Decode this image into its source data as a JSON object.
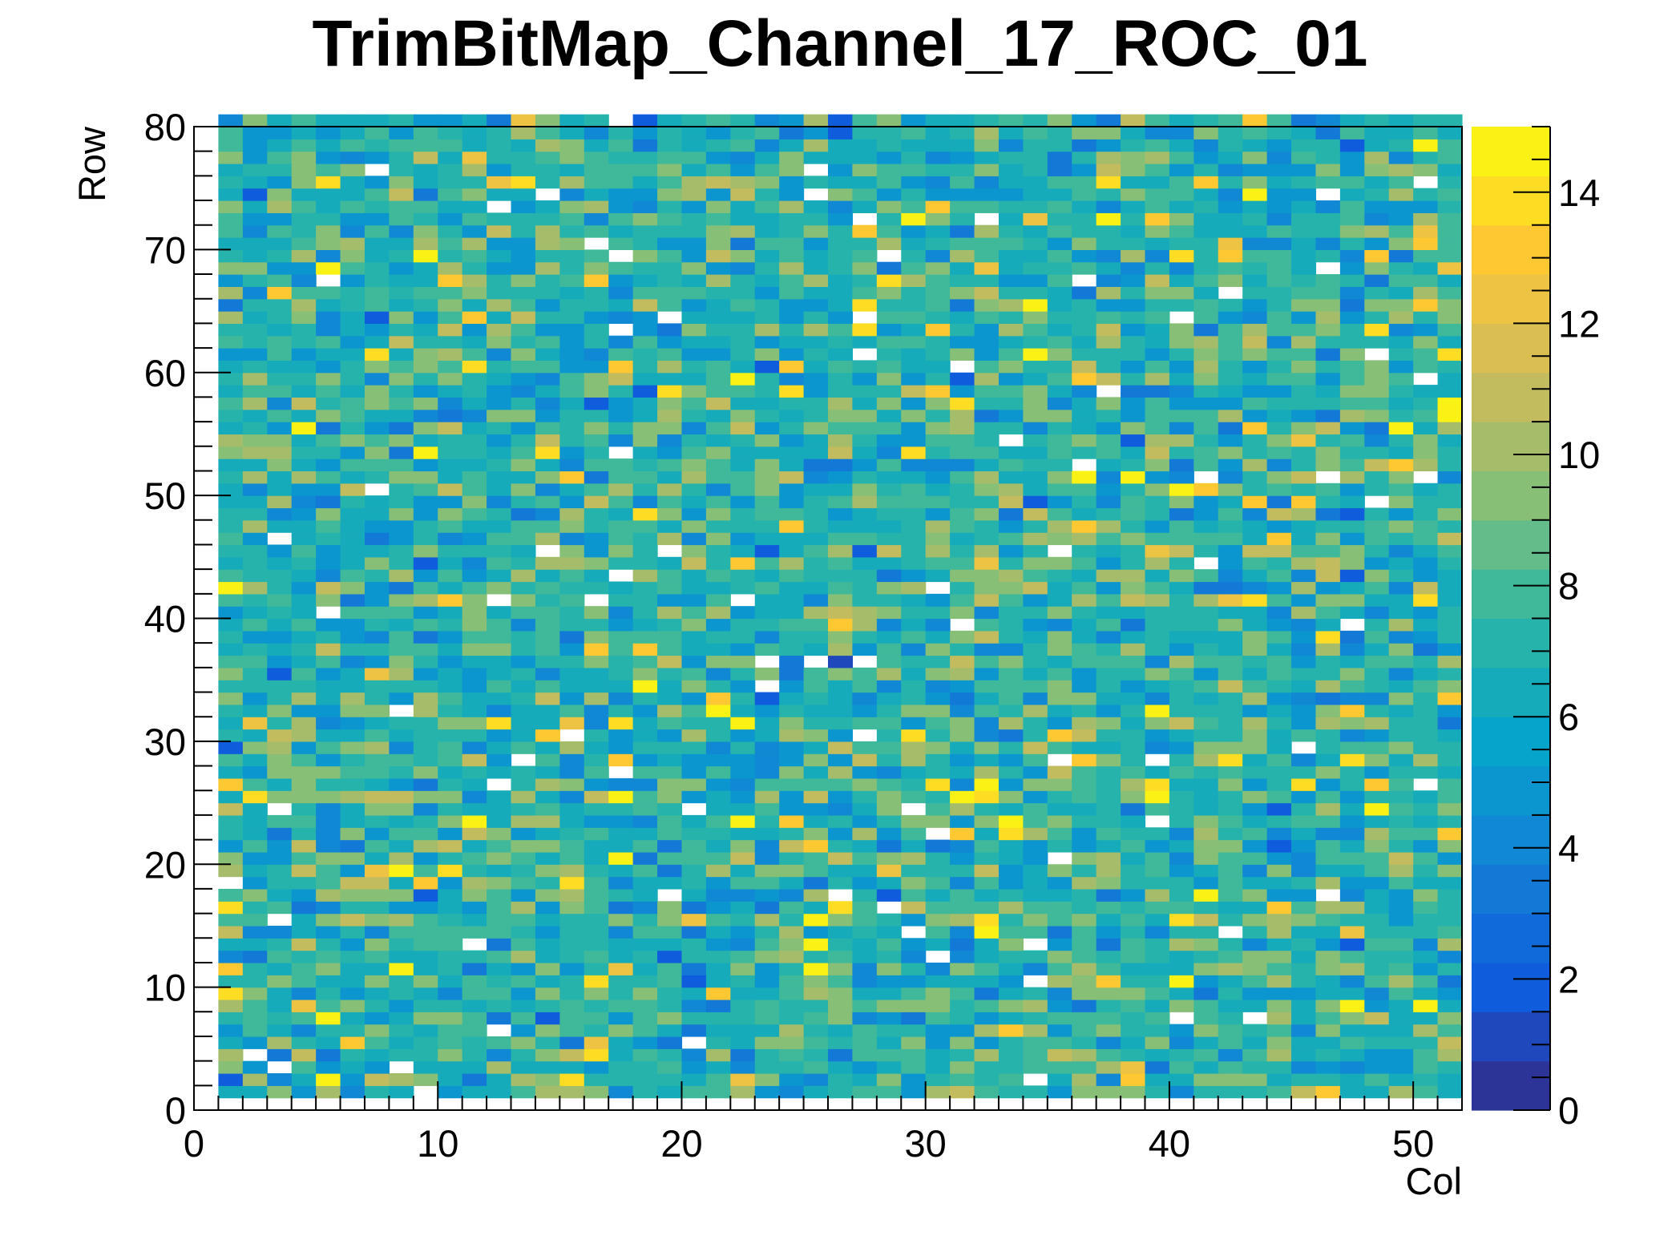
{
  "chart_data": {
    "type": "heatmap",
    "title": "TrimBitMap_Channel_17_ROC_01",
    "xlabel": "Col",
    "ylabel": "Row",
    "xlim": [
      0,
      52
    ],
    "ylim": [
      0,
      80
    ],
    "zlim": [
      0,
      15
    ],
    "x_ticks": [
      "0",
      "10",
      "20",
      "30",
      "40",
      "50"
    ],
    "y_ticks": [
      "0",
      "10",
      "20",
      "30",
      "40",
      "50",
      "60",
      "70",
      "80"
    ],
    "z_ticks": [
      "0",
      "2",
      "4",
      "6",
      "8",
      "10",
      "12",
      "14"
    ],
    "columns": 51,
    "rows": 80,
    "grid": false,
    "palette": "kBird",
    "seed": 17
  }
}
